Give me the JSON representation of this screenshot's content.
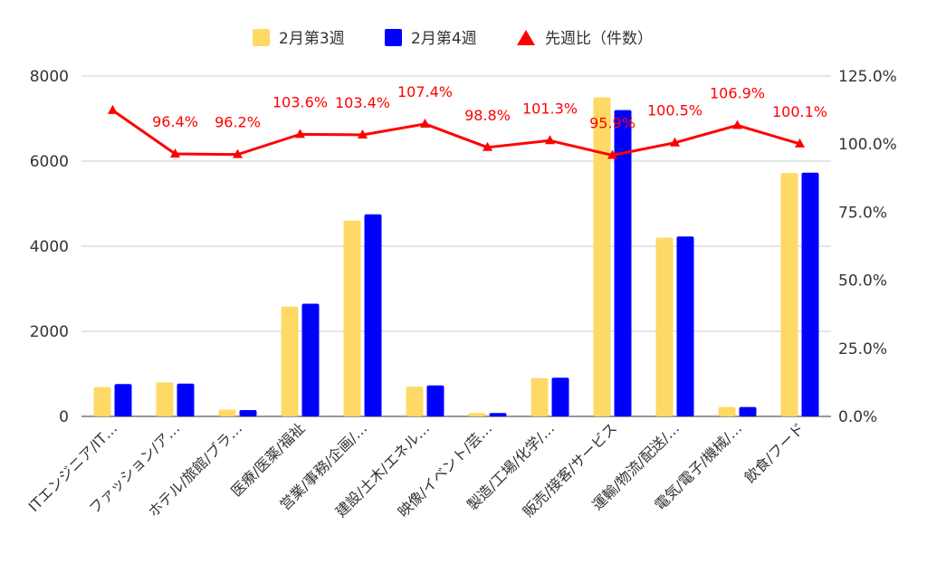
{
  "chart_data": {
    "type": "bar",
    "categories": [
      "ITエンジニア/IT…",
      "ファッション/ア…",
      "ホテル/旅館/ブラ…",
      "医療/医薬/福祉",
      "営業/事務/企画/…",
      "建設/土木/エネル…",
      "映像/イベント/芸…",
      "製造/工場/化学/…",
      "販売/接客/サービス",
      "運輸/物流/配送/…",
      "電気/電子/機械/…",
      "飲食/フード"
    ],
    "series": [
      {
        "name": "2月第3週",
        "type": "bar",
        "axis": "left",
        "color": "#ffd966",
        "values": [
          690,
          800,
          160,
          2580,
          4600,
          700,
          80,
          900,
          7500,
          4200,
          220,
          5720
        ]
      },
      {
        "name": "2月第4週",
        "type": "bar",
        "axis": "left",
        "color": "#0000ff",
        "values": [
          760,
          770,
          150,
          2650,
          4750,
          730,
          80,
          910,
          7200,
          4230,
          220,
          5730
        ]
      },
      {
        "name": "先週比（件数）",
        "type": "line",
        "axis": "right",
        "color": "#ff0000",
        "values": [
          112.4,
          96.4,
          96.2,
          103.6,
          103.4,
          107.4,
          98.8,
          101.3,
          95.9,
          100.5,
          106.9,
          100.1
        ]
      }
    ],
    "data_labels": [
      "",
      "96.4%",
      "96.2%",
      "103.6%",
      "103.4%",
      "107.4%",
      "98.8%",
      "101.3%",
      "95.9%",
      "100.5%",
      "106.9%",
      "100.1%"
    ],
    "y_left": {
      "ticks": [
        "0",
        "2000",
        "4000",
        "6000",
        "8000"
      ],
      "range": [
        0,
        8000
      ]
    },
    "y_right": {
      "ticks": [
        "0.0%",
        "25.0%",
        "50.0%",
        "75.0%",
        "100.0%",
        "125.0%"
      ],
      "range": [
        0,
        125
      ]
    },
    "legend_position": "top-center",
    "grid": true
  }
}
